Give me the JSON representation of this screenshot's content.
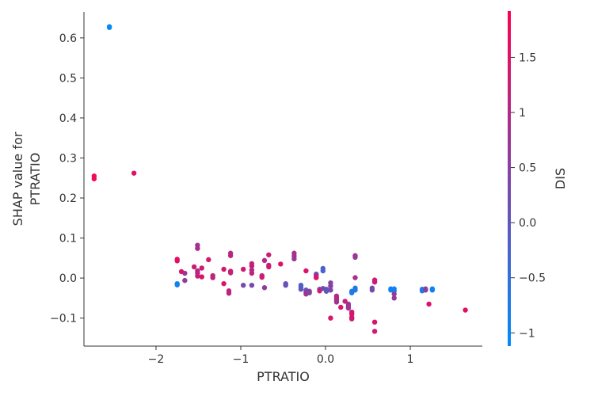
{
  "chart_data": {
    "type": "scatter",
    "xlabel": "PTRATIO",
    "ylabel_line1": "SHAP value for",
    "ylabel_line2": "PTRATIO",
    "xlim": [
      -2.85,
      1.85
    ],
    "ylim": [
      -0.17,
      0.665
    ],
    "xticks": [
      -2,
      -1,
      0,
      1
    ],
    "yticks": [
      -0.1,
      0.0,
      0.1,
      0.2,
      0.3,
      0.4,
      0.5,
      0.6
    ],
    "grid": false,
    "color_scale": {
      "label": "DIS",
      "min": -1.12,
      "max": 1.92,
      "ticks": [
        -1.0,
        -0.5,
        0.0,
        0.5,
        1.0,
        1.5
      ],
      "low_color": "#008bfb",
      "high_color": "#ff0052"
    },
    "points": [
      {
        "x": -2.55,
        "y": 0.628,
        "c": -1.05
      },
      {
        "x": -2.55,
        "y": 0.626,
        "c": -1.05
      },
      {
        "x": -2.73,
        "y": 0.255,
        "c": 1.75
      },
      {
        "x": -2.73,
        "y": 0.248,
        "c": 1.75
      },
      {
        "x": -2.26,
        "y": 0.262,
        "c": 1.55
      },
      {
        "x": -1.75,
        "y": 0.047,
        "c": 1.6
      },
      {
        "x": -1.75,
        "y": 0.043,
        "c": 1.6
      },
      {
        "x": -1.75,
        "y": -0.014,
        "c": -0.9
      },
      {
        "x": -1.75,
        "y": -0.017,
        "c": -0.9
      },
      {
        "x": -1.7,
        "y": 0.016,
        "c": 1.5
      },
      {
        "x": -1.66,
        "y": 0.012,
        "c": 0.8
      },
      {
        "x": -1.66,
        "y": -0.006,
        "c": 0.6
      },
      {
        "x": -1.55,
        "y": 0.028,
        "c": 1.3
      },
      {
        "x": -1.51,
        "y": 0.082,
        "c": 0.8
      },
      {
        "x": -1.51,
        "y": 0.074,
        "c": 0.9
      },
      {
        "x": -1.51,
        "y": 0.018,
        "c": 1.0
      },
      {
        "x": -1.51,
        "y": 0.012,
        "c": 1.1
      },
      {
        "x": -1.51,
        "y": 0.005,
        "c": 1.2
      },
      {
        "x": -1.46,
        "y": 0.025,
        "c": 1.3
      },
      {
        "x": -1.46,
        "y": 0.003,
        "c": 1.5
      },
      {
        "x": -1.38,
        "y": 0.046,
        "c": 1.4
      },
      {
        "x": -1.33,
        "y": 0.006,
        "c": 1.2
      },
      {
        "x": -1.33,
        "y": 0.001,
        "c": 1.1
      },
      {
        "x": -1.2,
        "y": 0.022,
        "c": 1.4
      },
      {
        "x": -1.2,
        "y": -0.014,
        "c": 1.5
      },
      {
        "x": -1.14,
        "y": -0.032,
        "c": 1.2
      },
      {
        "x": -1.14,
        "y": -0.038,
        "c": 1.1
      },
      {
        "x": -1.12,
        "y": 0.062,
        "c": 1.0
      },
      {
        "x": -1.12,
        "y": 0.056,
        "c": 1.1
      },
      {
        "x": -1.12,
        "y": 0.017,
        "c": 1.3
      },
      {
        "x": -1.12,
        "y": 0.013,
        "c": 1.2
      },
      {
        "x": -0.97,
        "y": 0.022,
        "c": 1.4
      },
      {
        "x": -0.97,
        "y": -0.018,
        "c": 0.3
      },
      {
        "x": -0.87,
        "y": 0.036,
        "c": 1.2
      },
      {
        "x": -0.87,
        "y": 0.03,
        "c": 1.3
      },
      {
        "x": -0.87,
        "y": 0.02,
        "c": 1.0
      },
      {
        "x": -0.87,
        "y": 0.012,
        "c": 1.1
      },
      {
        "x": -0.87,
        "y": -0.018,
        "c": 0.3
      },
      {
        "x": -0.75,
        "y": 0.006,
        "c": 1.2
      },
      {
        "x": -0.75,
        "y": 0.002,
        "c": 1.3
      },
      {
        "x": -0.72,
        "y": 0.044,
        "c": 1.0
      },
      {
        "x": -0.72,
        "y": -0.024,
        "c": 0.6
      },
      {
        "x": -0.67,
        "y": 0.058,
        "c": 1.3
      },
      {
        "x": -0.67,
        "y": 0.032,
        "c": 1.2
      },
      {
        "x": -0.67,
        "y": 0.028,
        "c": 1.4
      },
      {
        "x": -0.53,
        "y": 0.035,
        "c": 1.5
      },
      {
        "x": -0.47,
        "y": -0.014,
        "c": 0.2
      },
      {
        "x": -0.47,
        "y": -0.018,
        "c": 0.1
      },
      {
        "x": -0.37,
        "y": 0.062,
        "c": 0.9
      },
      {
        "x": -0.37,
        "y": 0.055,
        "c": 0.8
      },
      {
        "x": -0.37,
        "y": 0.048,
        "c": 0.7
      },
      {
        "x": -0.29,
        "y": -0.018,
        "c": -0.2
      },
      {
        "x": -0.29,
        "y": -0.023,
        "c": -0.1
      },
      {
        "x": -0.29,
        "y": -0.028,
        "c": 0.0
      },
      {
        "x": -0.23,
        "y": 0.018,
        "c": 1.5
      },
      {
        "x": -0.23,
        "y": -0.03,
        "c": 0.1
      },
      {
        "x": -0.23,
        "y": -0.036,
        "c": 0.6
      },
      {
        "x": -0.23,
        "y": -0.04,
        "c": 0.8
      },
      {
        "x": -0.19,
        "y": -0.033,
        "c": 0.5
      },
      {
        "x": -0.19,
        "y": -0.037,
        "c": 0.4
      },
      {
        "x": -0.11,
        "y": 0.01,
        "c": 0.0
      },
      {
        "x": -0.11,
        "y": 0.005,
        "c": 1.3
      },
      {
        "x": -0.11,
        "y": 0.001,
        "c": 1.4
      },
      {
        "x": -0.07,
        "y": -0.028,
        "c": 0.2
      },
      {
        "x": -0.07,
        "y": -0.032,
        "c": 1.3
      },
      {
        "x": -0.03,
        "y": 0.024,
        "c": -0.3
      },
      {
        "x": -0.03,
        "y": 0.018,
        "c": -0.2
      },
      {
        "x": -0.03,
        "y": -0.026,
        "c": 0.3
      },
      {
        "x": 0.01,
        "y": -0.028,
        "c": 0.1
      },
      {
        "x": 0.01,
        "y": -0.033,
        "c": 0.0
      },
      {
        "x": 0.06,
        "y": -0.012,
        "c": 0.4
      },
      {
        "x": 0.06,
        "y": -0.02,
        "c": 0.5
      },
      {
        "x": 0.06,
        "y": -0.03,
        "c": 0.3
      },
      {
        "x": 0.06,
        "y": -0.1,
        "c": 1.5
      },
      {
        "x": 0.13,
        "y": -0.045,
        "c": 1.0
      },
      {
        "x": 0.13,
        "y": -0.05,
        "c": 1.1
      },
      {
        "x": 0.13,
        "y": -0.055,
        "c": 0.9
      },
      {
        "x": 0.13,
        "y": -0.06,
        "c": 0.8
      },
      {
        "x": 0.18,
        "y": -0.073,
        "c": 1.4
      },
      {
        "x": 0.23,
        "y": -0.058,
        "c": 1.2
      },
      {
        "x": 0.27,
        "y": -0.065,
        "c": 0.8
      },
      {
        "x": 0.27,
        "y": -0.07,
        "c": 0.9
      },
      {
        "x": 0.27,
        "y": -0.075,
        "c": 0.7
      },
      {
        "x": 0.31,
        "y": -0.085,
        "c": 1.4
      },
      {
        "x": 0.31,
        "y": -0.09,
        "c": 1.5
      },
      {
        "x": 0.31,
        "y": -0.098,
        "c": 1.4
      },
      {
        "x": 0.31,
        "y": -0.102,
        "c": 1.3
      },
      {
        "x": 0.31,
        "y": -0.033,
        "c": -0.9
      },
      {
        "x": 0.31,
        "y": -0.037,
        "c": -0.8
      },
      {
        "x": 0.35,
        "y": 0.056,
        "c": 0.8
      },
      {
        "x": 0.35,
        "y": 0.052,
        "c": 0.7
      },
      {
        "x": 0.35,
        "y": 0.001,
        "c": 0.9
      },
      {
        "x": 0.35,
        "y": -0.025,
        "c": -0.6
      },
      {
        "x": 0.35,
        "y": -0.03,
        "c": -0.7
      },
      {
        "x": 0.55,
        "y": -0.025,
        "c": 0.2
      },
      {
        "x": 0.55,
        "y": -0.03,
        "c": 0.3
      },
      {
        "x": 0.58,
        "y": -0.005,
        "c": 1.4
      },
      {
        "x": 0.58,
        "y": -0.01,
        "c": 1.3
      },
      {
        "x": 0.58,
        "y": -0.11,
        "c": 1.5
      },
      {
        "x": 0.58,
        "y": -0.133,
        "c": 1.4
      },
      {
        "x": 0.77,
        "y": -0.027,
        "c": -0.8
      },
      {
        "x": 0.77,
        "y": -0.03,
        "c": -0.9
      },
      {
        "x": 0.81,
        "y": -0.027,
        "c": -1.0
      },
      {
        "x": 0.81,
        "y": -0.032,
        "c": -0.9
      },
      {
        "x": 0.81,
        "y": -0.04,
        "c": 0.6
      },
      {
        "x": 0.81,
        "y": -0.05,
        "c": 0.7
      },
      {
        "x": 1.14,
        "y": -0.028,
        "c": -0.7
      },
      {
        "x": 1.14,
        "y": -0.032,
        "c": -0.8
      },
      {
        "x": 1.18,
        "y": -0.027,
        "c": 0.4
      },
      {
        "x": 1.18,
        "y": -0.03,
        "c": 0.5
      },
      {
        "x": 1.22,
        "y": -0.065,
        "c": 1.5
      },
      {
        "x": 1.26,
        "y": -0.027,
        "c": -1.0
      },
      {
        "x": 1.26,
        "y": -0.03,
        "c": -0.9
      },
      {
        "x": 1.65,
        "y": -0.08,
        "c": 1.6
      }
    ]
  }
}
